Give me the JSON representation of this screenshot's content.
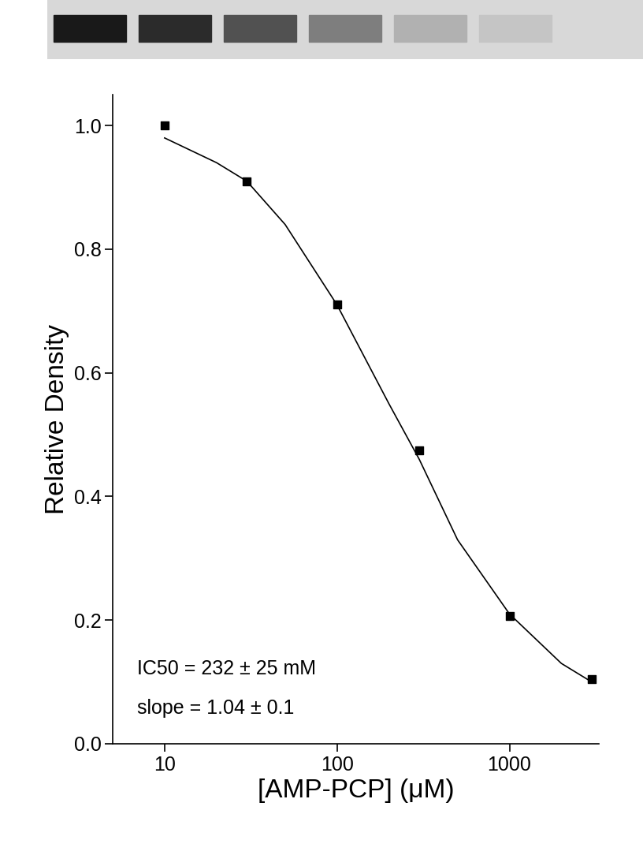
{
  "chart_data": {
    "type": "scatter",
    "xlabel": "[AMP-PCP] (μM)",
    "ylabel": "Relative Density",
    "log": "x",
    "xlim": [
      5,
      3300
    ],
    "xticks": [
      10,
      100,
      1000
    ],
    "ylim": [
      0,
      1.05
    ],
    "yticks": [
      {
        "value": 0,
        "label": "0.0"
      },
      {
        "value": 0.2,
        "label": "0.2"
      },
      {
        "value": 0.4,
        "label": "0.4"
      },
      {
        "value": 0.6,
        "label": "0.6"
      },
      {
        "value": 0.8,
        "label": "0.8"
      },
      {
        "value": 1,
        "label": "1.0"
      }
    ],
    "annotations": [
      "IC50 = 232 ± 25 mM",
      "slope = 1.04 ± 0.1"
    ],
    "series": [
      {
        "type": "scatter",
        "marker": "square",
        "color": "#000000",
        "x": [
          10,
          30,
          100,
          300,
          1000,
          3000
        ],
        "values": [
          1.0,
          0.91,
          0.71,
          0.475,
          0.207,
          0.104
        ]
      },
      {
        "type": "line",
        "line_style": "solid",
        "color": "#000000",
        "x": [
          10,
          20,
          30,
          50,
          100,
          200,
          300,
          500,
          1000,
          2000,
          3000
        ],
        "values": [
          0.98,
          0.94,
          0.91,
          0.84,
          0.71,
          0.55,
          0.46,
          0.33,
          0.21,
          0.13,
          0.1
        ]
      }
    ]
  }
}
